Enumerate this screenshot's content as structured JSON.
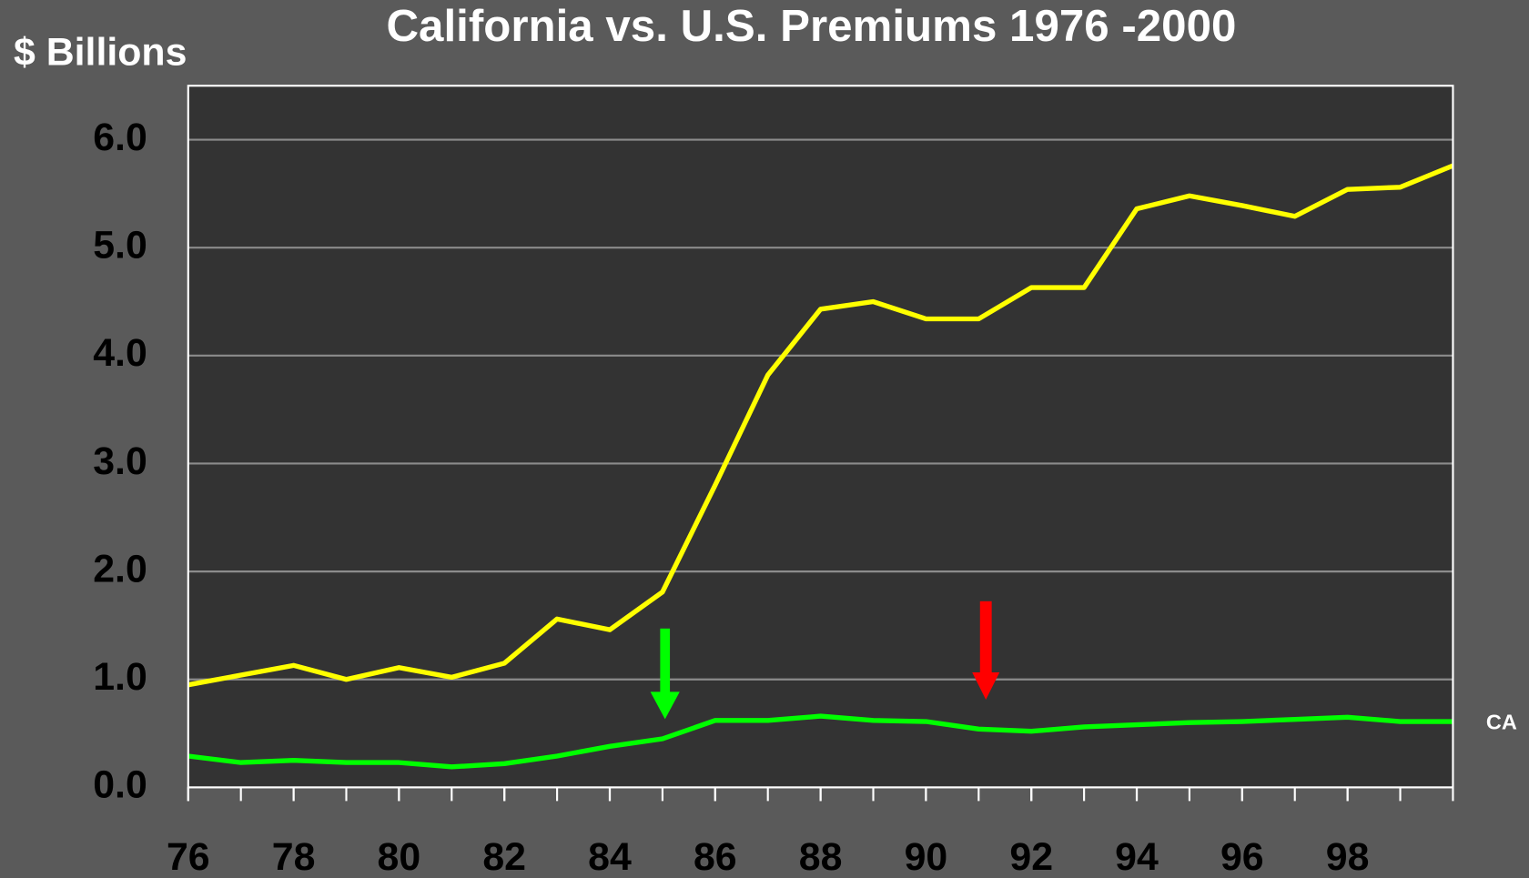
{
  "chart_data": {
    "type": "line",
    "title": "California vs. U.S. Premiums 1976 -2000",
    "y_label": "$ Billions",
    "x": [
      1976,
      1977,
      1978,
      1979,
      1980,
      1981,
      1982,
      1983,
      1984,
      1985,
      1986,
      1987,
      1988,
      1989,
      1990,
      1991,
      1992,
      1993,
      1994,
      1995,
      1996,
      1997,
      1998,
      1999,
      2000
    ],
    "series": [
      {
        "color": "#ffff00",
        "values": [
          0.95,
          1.04,
          1.13,
          1.0,
          1.11,
          1.02,
          1.15,
          1.56,
          1.46,
          1.81,
          2.8,
          3.82,
          4.43,
          4.5,
          4.34,
          4.34,
          4.63,
          4.63,
          5.36,
          5.48,
          5.39,
          5.29,
          5.54,
          5.56,
          5.76
        ]
      },
      {
        "name": "CA",
        "color": "#00ff00",
        "values": [
          0.29,
          0.23,
          0.25,
          0.23,
          0.23,
          0.19,
          0.22,
          0.29,
          0.38,
          0.45,
          0.62,
          0.62,
          0.66,
          0.62,
          0.61,
          0.54,
          0.52,
          0.56,
          0.58,
          0.6,
          0.61,
          0.63,
          0.65,
          0.61,
          0.61
        ]
      }
    ],
    "xlim": [
      1976,
      2000
    ],
    "xticks": [
      {
        "value": 1976,
        "label": "76"
      },
      {
        "value": 1978,
        "label": "78"
      },
      {
        "value": 1980,
        "label": "80"
      },
      {
        "value": 1982,
        "label": "82"
      },
      {
        "value": 1984,
        "label": "84"
      },
      {
        "value": 1986,
        "label": "86"
      },
      {
        "value": 1988,
        "label": "88"
      },
      {
        "value": 1990,
        "label": "90"
      },
      {
        "value": 1992,
        "label": "92"
      },
      {
        "value": 1994,
        "label": "94"
      },
      {
        "value": 1996,
        "label": "96"
      },
      {
        "value": 1998,
        "label": "98"
      }
    ],
    "ylim": [
      0,
      6.5
    ],
    "yticks": [
      {
        "value": 0,
        "label": "0.0"
      },
      {
        "value": 1,
        "label": "1.0"
      },
      {
        "value": 2,
        "label": "2.0"
      },
      {
        "value": 3,
        "label": "3.0"
      },
      {
        "value": 4,
        "label": "4.0"
      },
      {
        "value": 5,
        "label": "5.0"
      },
      {
        "value": 6,
        "label": "6.0"
      }
    ],
    "grid": true
  }
}
